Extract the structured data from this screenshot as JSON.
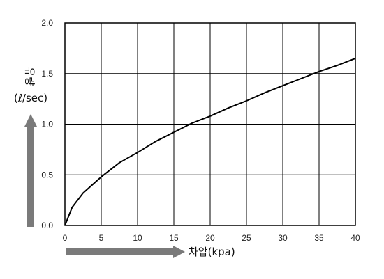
{
  "chart_data": {
    "type": "line",
    "title": "",
    "ylabel": "유량",
    "ylabel_unit": "(ℓ/sec)",
    "xlabel": "차압(kpa)",
    "xlim": [
      0,
      40
    ],
    "ylim": [
      0,
      2.0
    ],
    "x_ticks": [
      "0",
      "5",
      "10",
      "15",
      "20",
      "25",
      "30",
      "35",
      "40"
    ],
    "y_ticks": [
      "0.0",
      "0.5",
      "1.0",
      "1.5",
      "2.0"
    ],
    "grid": true,
    "legend": "none",
    "series": [
      {
        "x": [
          0,
          1,
          2.5,
          5,
          7.5,
          10,
          12.5,
          15,
          17.5,
          20,
          22.5,
          25,
          27.5,
          30,
          32.5,
          35,
          37.5,
          40
        ],
        "y": [
          0,
          0.18,
          0.32,
          0.48,
          0.62,
          0.72,
          0.83,
          0.92,
          1.01,
          1.08,
          1.16,
          1.23,
          1.31,
          1.38,
          1.45,
          1.52,
          1.58,
          1.65
        ]
      }
    ],
    "line_color": "#000000",
    "arrow_color": "#7a7a7a"
  }
}
